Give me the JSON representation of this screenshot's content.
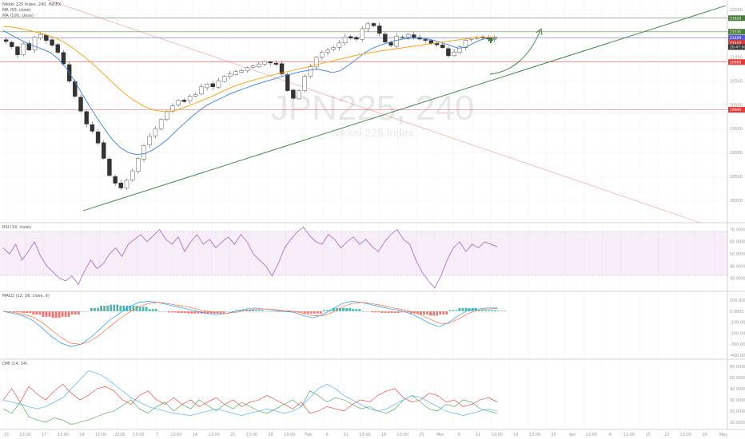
{
  "legend": {
    "title": "Nikkei 225 Index, 240, INDEX",
    "ma1": "MA (50, close)",
    "ma2": "MA (100, close)",
    "rsi": "RSI (14, close)",
    "macd": "MACD (12, 26, close, 9)",
    "dmi": "DMI (14, 14)"
  },
  "watermark": {
    "symbol": "JPN225, 240",
    "name": "Nikkei 225 Index"
  },
  "price_axis": [
    "22000",
    "21500",
    "21000",
    "20500",
    "20000",
    "19500",
    "19000",
    "18500",
    "18000"
  ],
  "price_tags": [
    {
      "text": "21820",
      "color": "#4a7c3a",
      "price": 21820
    },
    {
      "text": "21535",
      "color": "#4a7c3a",
      "price": 21535
    },
    {
      "text": "21409",
      "color": "#5b5bd6",
      "price": 21409
    },
    {
      "text": "21420",
      "color": "#e53935",
      "price": 21300
    },
    {
      "text": "20:47:00",
      "color": "#333333",
      "price": 21215
    },
    {
      "text": "20900",
      "color": "#e53935",
      "price": 20900
    },
    {
      "text": "19900",
      "color": "#e53935",
      "price": 19900
    }
  ],
  "rsi_axis": [
    "70.0000",
    "60.0000",
    "50.0000",
    "40.0000",
    "30.0000"
  ],
  "macd_axis": [
    "100.0000",
    "0.0000",
    "-100.0000",
    "-200.0000",
    "-300.0000",
    "-400.0000"
  ],
  "dmi_axis": [
    "60.0000",
    "50.0000",
    "40.0000",
    "30.0000",
    "20.0000",
    "10.0000"
  ],
  "time_axis": [
    "15",
    "13:00",
    "17",
    "13:00",
    "24",
    "17:00",
    "2018",
    "13:00",
    "7",
    "13:00",
    "14",
    "13:00",
    "21",
    "13:00",
    "28",
    "13:00",
    "Feb",
    "6",
    "11",
    "13:00",
    "18",
    "13:00",
    "25",
    "Mar",
    "6",
    "11",
    "13:00",
    "18",
    "13:00",
    "25",
    "Apr",
    "13:00",
    "8",
    "13:00",
    "15",
    "22",
    "13:00",
    "29",
    "May"
  ],
  "chart_data": [
    {
      "type": "candlestick",
      "title": "Nikkei 225 Index, 240, INDEX",
      "y_range": [
        17650,
        22100
      ],
      "horizontal_levels": [
        21820,
        21535,
        21409,
        20900,
        19900
      ],
      "series": [
        {
          "name": "Nikkei 225 Index",
          "close_path": [
            21330,
            21220,
            21050,
            21280,
            21150,
            21420,
            21480,
            21350,
            21250,
            21100,
            20860,
            20500,
            20180,
            19870,
            19600,
            19450,
            19200,
            18880,
            18520,
            18360,
            18260,
            18420,
            18620,
            18880,
            19150,
            19340,
            19500,
            19700,
            19860,
            19980,
            20100,
            20070,
            20180,
            20220,
            20380,
            20440,
            20380,
            20510,
            20600,
            20650,
            20700,
            20720,
            20780,
            20820,
            20860,
            20910,
            20880,
            20850,
            20650,
            20300,
            20140,
            20300,
            20600,
            20800,
            21000,
            21100,
            21150,
            21200,
            21300,
            21420,
            21400,
            21380,
            21600,
            21700,
            21660,
            21500,
            21320,
            21250,
            21440,
            21420,
            21480,
            21420,
            21380,
            21350,
            21290,
            21260,
            21200,
            21030,
            21110,
            21220,
            21360,
            21400,
            21420,
            21400,
            21380,
            21390
          ]
        },
        {
          "name": "MA (50, close)",
          "path": [
            21560,
            21470,
            21380,
            21300,
            21230,
            21170,
            21100,
            20970,
            20780,
            20530,
            20250,
            19980,
            19720,
            19480,
            19260,
            19100,
            19000,
            18960,
            18980,
            19050,
            19160,
            19290,
            19450,
            19600,
            19750,
            19880,
            20000,
            20080,
            20160,
            20240,
            20300,
            20360,
            20420,
            20470,
            20520,
            20570,
            20620,
            20660,
            20700,
            20730,
            20750,
            20720,
            20680,
            20720,
            20830,
            20950,
            21080,
            21180,
            21250,
            21300,
            21350,
            21380,
            21400,
            21400,
            21390,
            21350,
            21300,
            21250,
            21190,
            21210,
            21300,
            21370,
            21400,
            21400
          ]
        },
        {
          "name": "MA (100, close)",
          "path": [
            21650,
            21630,
            21590,
            21540,
            21490,
            21420,
            21320,
            21180,
            21020,
            20840,
            20640,
            20440,
            20250,
            20090,
            19970,
            19890,
            19860,
            19880,
            19950,
            20030,
            20120,
            20210,
            20310,
            20400,
            20470,
            20530,
            20590,
            20640,
            20690,
            20740,
            20790,
            20840,
            20890,
            20940,
            20990,
            21040,
            21080,
            21120,
            21150,
            21180,
            21210,
            21240,
            21270,
            21300,
            21330,
            21360,
            21390,
            21410,
            21420,
            21420
          ]
        }
      ],
      "trendlines": [
        {
          "name": "support",
          "from": [
            "24",
            18300
          ],
          "to": [
            "May",
            22000
          ]
        },
        {
          "name": "descending",
          "from": [
            "15",
            22000
          ],
          "to": [
            "May",
            18200
          ]
        }
      ]
    },
    {
      "type": "line",
      "title": "RSI (14, close)",
      "y_range": [
        20,
        75
      ],
      "band": [
        30,
        70
      ],
      "series": [
        {
          "name": "RSI",
          "values": [
            55,
            50,
            58,
            45,
            52,
            60,
            48,
            40,
            35,
            30,
            28,
            32,
            25,
            36,
            45,
            38,
            42,
            50,
            55,
            48,
            58,
            62,
            66,
            60,
            65,
            70,
            62,
            58,
            64,
            52,
            60,
            66,
            58,
            62,
            55,
            60,
            64,
            58,
            66,
            60,
            50,
            45,
            40,
            32,
            42,
            55,
            62,
            68,
            72,
            65,
            60,
            58,
            66,
            62,
            55,
            60,
            64,
            58,
            62,
            56,
            52,
            60,
            66,
            70,
            62,
            58,
            45,
            35,
            28,
            22,
            32,
            45,
            55,
            60,
            52,
            58,
            55,
            60,
            58,
            56
          ]
        }
      ]
    },
    {
      "type": "line",
      "title": "MACD (12, 26, close, 9)",
      "y_range": [
        -420,
        130
      ],
      "series": [
        {
          "name": "MACD",
          "values": [
            0,
            -20,
            -40,
            -80,
            -150,
            -230,
            -290,
            -320,
            -300,
            -240,
            -160,
            -80,
            -20,
            40,
            80,
            90,
            80,
            60,
            40,
            20,
            0,
            -20,
            -30,
            -20,
            0,
            20,
            30,
            20,
            10,
            0,
            -10,
            -40,
            -60,
            -30,
            20,
            70,
            90,
            80,
            60,
            40,
            20,
            10,
            -20,
            -60,
            -110,
            -140,
            -100,
            -40,
            10,
            20,
            30,
            30
          ]
        },
        {
          "name": "Signal",
          "values": [
            0,
            -10,
            -25,
            -50,
            -100,
            -170,
            -240,
            -290,
            -300,
            -270,
            -210,
            -140,
            -70,
            -10,
            40,
            70,
            80,
            70,
            55,
            40,
            20,
            0,
            -15,
            -20,
            -10,
            5,
            20,
            20,
            15,
            5,
            0,
            -20,
            -40,
            -40,
            -10,
            40,
            70,
            80,
            70,
            55,
            35,
            20,
            0,
            -30,
            -70,
            -110,
            -110,
            -70,
            -20,
            10,
            20,
            25
          ]
        }
      ]
    },
    {
      "type": "line",
      "title": "DMI (14, 14)",
      "y_range": [
        5,
        65
      ],
      "series": [
        {
          "name": "+DI",
          "values": [
            22,
            18,
            28,
            15,
            12,
            10,
            14,
            12,
            8,
            10,
            12,
            15,
            18,
            20,
            25,
            30,
            22,
            18,
            24,
            28,
            20,
            26,
            22,
            30,
            25,
            20,
            26,
            22,
            28,
            24,
            20,
            18,
            22,
            26,
            30,
            24,
            38,
            34,
            28,
            32,
            30,
            26,
            22,
            24,
            20,
            18,
            22,
            30,
            34,
            28,
            22,
            20,
            26,
            24,
            30,
            28,
            22,
            20,
            18
          ]
        },
        {
          "name": "-DI",
          "values": [
            30,
            40,
            28,
            42,
            35,
            30,
            38,
            44,
            36,
            30,
            34,
            40,
            42,
            38,
            30,
            26,
            34,
            38,
            30,
            26,
            32,
            26,
            30,
            24,
            28,
            32,
            26,
            30,
            24,
            28,
            30,
            34,
            30,
            26,
            22,
            28,
            18,
            20,
            24,
            22,
            20,
            26,
            30,
            28,
            34,
            38,
            40,
            32,
            28,
            30,
            36,
            34,
            28,
            30,
            24,
            26,
            30,
            32,
            28
          ]
        },
        {
          "name": "ADX",
          "values": [
            30,
            28,
            26,
            24,
            22,
            24,
            28,
            32,
            40,
            48,
            56,
            54,
            50,
            44,
            38,
            32,
            28,
            24,
            22,
            20,
            18,
            17,
            16,
            18,
            20,
            22,
            20,
            18,
            16,
            18,
            20,
            22,
            20,
            18,
            20,
            24,
            32,
            40,
            44,
            40,
            34,
            30,
            26,
            22,
            20,
            22,
            26,
            30,
            34,
            32,
            28,
            24,
            20,
            18,
            16,
            18,
            20,
            22,
            20
          ]
        }
      ]
    }
  ]
}
